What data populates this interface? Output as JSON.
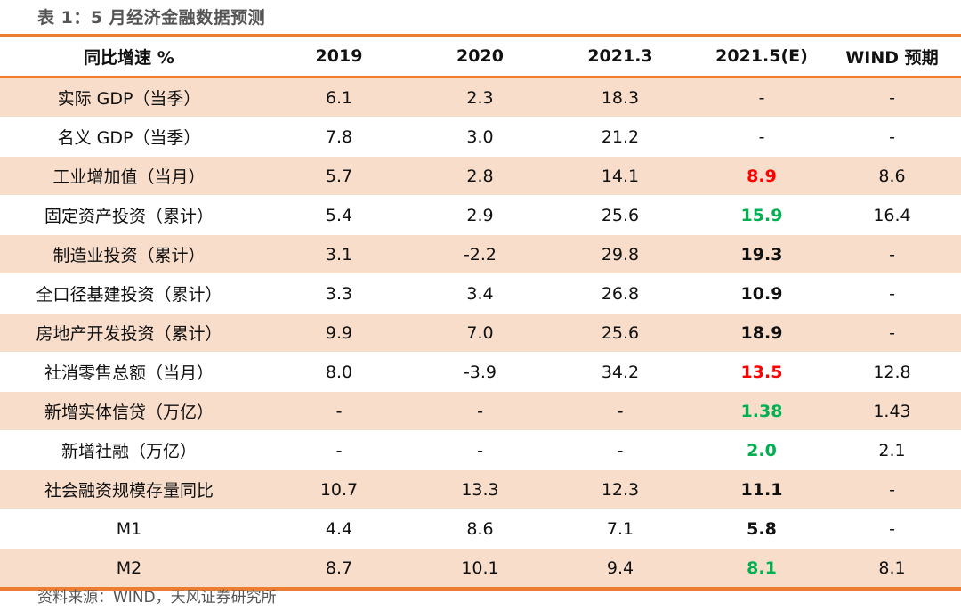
{
  "title": "表 1：5 月经济金融数据预测",
  "colors": {
    "accent": "#ED7D31",
    "shade": "#F8DDCB",
    "red": "#FF0000",
    "green": "#00B050",
    "text": "#111111"
  },
  "table": {
    "headers": [
      "同比增速 %",
      "2019",
      "2020",
      "2021.3",
      "2021.5(E)",
      "WIND 预期"
    ],
    "rows": [
      {
        "label": "实际 GDP（当季）",
        "v2019": "6.1",
        "v2020": "2.3",
        "v2021_3": "18.3",
        "est": "-",
        "est_style": "plain",
        "wind": "-"
      },
      {
        "label": "名义 GDP（当季）",
        "v2019": "7.8",
        "v2020": "3.0",
        "v2021_3": "21.2",
        "est": "-",
        "est_style": "plain",
        "wind": "-"
      },
      {
        "label": "工业增加值（当月）",
        "v2019": "5.7",
        "v2020": "2.8",
        "v2021_3": "14.1",
        "est": "8.9",
        "est_style": "red",
        "wind": "8.6"
      },
      {
        "label": "固定资产投资（累计）",
        "v2019": "5.4",
        "v2020": "2.9",
        "v2021_3": "25.6",
        "est": "15.9",
        "est_style": "green",
        "wind": "16.4"
      },
      {
        "label": "制造业投资（累计）",
        "v2019": "3.1",
        "v2020": "-2.2",
        "v2021_3": "29.8",
        "est": "19.3",
        "est_style": "black",
        "wind": "-"
      },
      {
        "label": "全口径基建投资（累计）",
        "v2019": "3.3",
        "v2020": "3.4",
        "v2021_3": "26.8",
        "est": "10.9",
        "est_style": "black",
        "wind": "-"
      },
      {
        "label": "房地产开发投资（累计）",
        "v2019": "9.9",
        "v2020": "7.0",
        "v2021_3": "25.6",
        "est": "18.9",
        "est_style": "black",
        "wind": "-"
      },
      {
        "label": "社消零售总额（当月）",
        "v2019": "8.0",
        "v2020": "-3.9",
        "v2021_3": "34.2",
        "est": "13.5",
        "est_style": "red",
        "wind": "12.8"
      },
      {
        "label": "新增实体信贷（万亿）",
        "v2019": "-",
        "v2020": "-",
        "v2021_3": "-",
        "est": "1.38",
        "est_style": "green",
        "wind": "1.43"
      },
      {
        "label": "新增社融（万亿）",
        "v2019": "-",
        "v2020": "-",
        "v2021_3": "-",
        "est": "2.0",
        "est_style": "green",
        "wind": "2.1"
      },
      {
        "label": "社会融资规模存量同比",
        "v2019": "10.7",
        "v2020": "13.3",
        "v2021_3": "12.3",
        "est": "11.1",
        "est_style": "black",
        "wind": "-"
      },
      {
        "label": "M1",
        "v2019": "4.4",
        "v2020": "8.6",
        "v2021_3": "7.1",
        "est": "5.8",
        "est_style": "black",
        "wind": "-"
      },
      {
        "label": "M2",
        "v2019": "8.7",
        "v2020": "10.1",
        "v2021_3": "9.4",
        "est": "8.1",
        "est_style": "green",
        "wind": "8.1"
      }
    ]
  },
  "source": "资料来源：WIND，天风证券研究所"
}
